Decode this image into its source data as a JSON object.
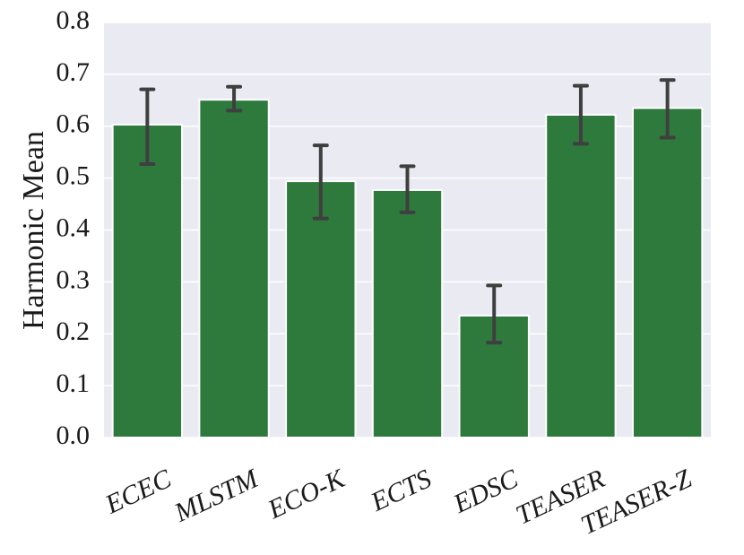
{
  "chart_data": {
    "type": "bar",
    "categories": [
      "ECEC",
      "MLSTM",
      "ECO-K",
      "ECTS",
      "EDSC",
      "TEASER",
      "TEASER-Z"
    ],
    "values": [
      0.603,
      0.651,
      0.494,
      0.477,
      0.235,
      0.622,
      0.635
    ],
    "error_low": [
      0.527,
      0.63,
      0.422,
      0.434,
      0.183,
      0.566,
      0.578
    ],
    "error_high": [
      0.671,
      0.676,
      0.563,
      0.523,
      0.293,
      0.678,
      0.689
    ],
    "xlabel": "",
    "ylabel": "Harmonic Mean",
    "ylim": [
      0,
      0.8
    ],
    "yticks": [
      0.0,
      0.1,
      0.2,
      0.3,
      0.4,
      0.5,
      0.6,
      0.7,
      0.8
    ],
    "ytick_labels": [
      "0.0",
      "0.1",
      "0.2",
      "0.3",
      "0.4",
      "0.5",
      "0.6",
      "0.7",
      "0.8"
    ],
    "grid": true,
    "legend": "none",
    "colors": {
      "bar": "#2e7a3c",
      "bar_edge": "#ffffff",
      "error_bar": "#3f3f3f",
      "plot_background": "#eaeaf2",
      "grid": "#ffffff"
    }
  }
}
